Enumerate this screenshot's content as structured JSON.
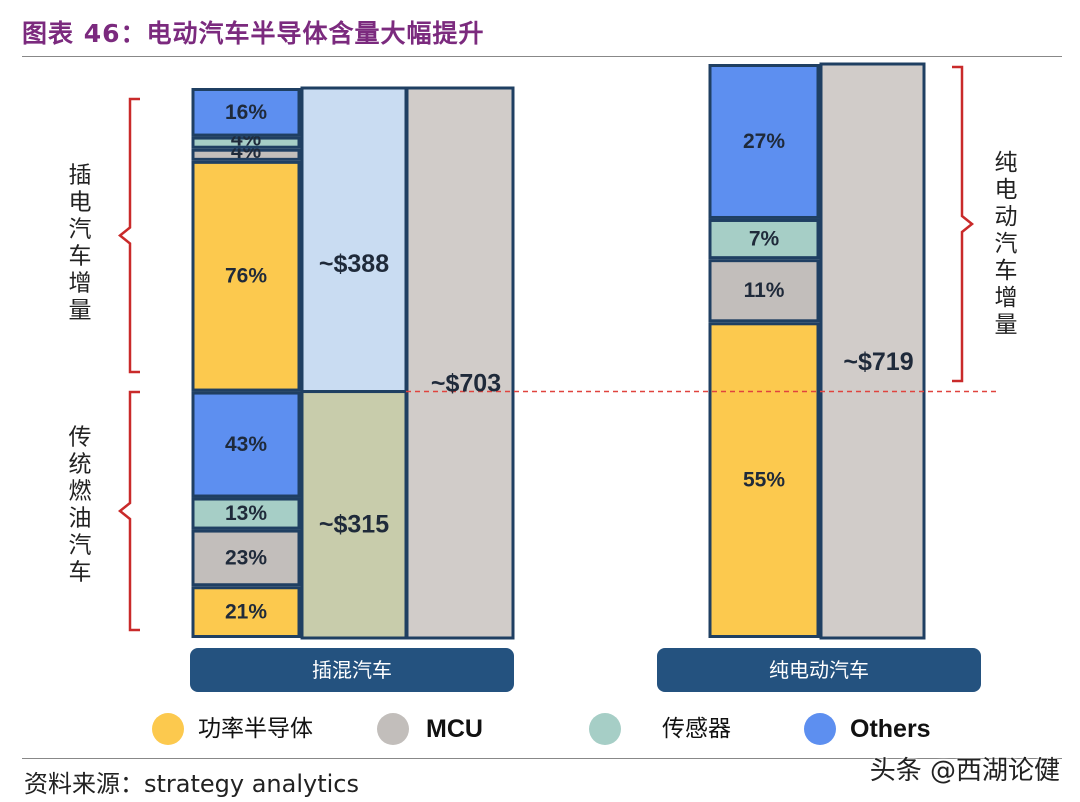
{
  "title": "图表 46：电动汽车半导体含量大幅提升",
  "source": "资料来源：strategy analytics",
  "watermark": "头条 @西湖论健",
  "colors": {
    "power": "#fcc94e",
    "mcu": "#c2bebb",
    "sensor": "#a6cec6",
    "others": "#5d8ff0",
    "total": "#d1ccc9",
    "phev_increment_total": "#c9dcf2",
    "ice_total": "#c8ccab",
    "frame": "#1f3f62",
    "bracket": "#c92a2a",
    "dashed_line": "#e0433e",
    "group_bar": "#24527f",
    "title": "#7b2a7e"
  },
  "chart_data": {
    "type": "stacked_bar",
    "title": "电动汽车半导体含量大幅提升",
    "units": "%",
    "legend": [
      {
        "key": "power",
        "label": "功率半导体",
        "icon": "circle-yellow"
      },
      {
        "key": "mcu",
        "label": "MCU",
        "icon": "circle-gray"
      },
      {
        "key": "sensor",
        "label": "传感器",
        "icon": "circle-teal"
      },
      {
        "key": "others",
        "label": "Others",
        "icon": "circle-blue"
      }
    ],
    "groups": [
      {
        "label": "插混汽车",
        "total_label": "~$703",
        "total_value": 703,
        "segments": [
          {
            "label": "传统燃油汽车",
            "total_label": "~$315",
            "total_value": 315,
            "composition": [
              {
                "category": "功率半导体",
                "key": "power",
                "value": 21,
                "label": "21%"
              },
              {
                "category": "MCU",
                "key": "mcu",
                "value": 23,
                "label": "23%"
              },
              {
                "category": "传感器",
                "key": "sensor",
                "value": 13,
                "label": "13%"
              },
              {
                "category": "Others",
                "key": "others",
                "value": 43,
                "label": "43%"
              }
            ]
          },
          {
            "label": "插电汽车增量",
            "total_label": "~$388",
            "total_value": 388,
            "composition": [
              {
                "category": "功率半导体",
                "key": "power",
                "value": 76,
                "label": "76%"
              },
              {
                "category": "MCU",
                "key": "mcu",
                "value": 4,
                "label": "4%"
              },
              {
                "category": "传感器",
                "key": "sensor",
                "value": 4,
                "label": "4%"
              },
              {
                "category": "Others",
                "key": "others",
                "value": 16,
                "label": "16%"
              }
            ]
          }
        ]
      },
      {
        "label": "纯电动汽车",
        "total_label": "~$719",
        "total_value": 719,
        "segments": [
          {
            "label": "纯电动汽车增量",
            "composition": [
              {
                "category": "功率半导体",
                "key": "power",
                "value": 55,
                "label": "55%"
              },
              {
                "category": "MCU",
                "key": "mcu",
                "value": 11,
                "label": "11%"
              },
              {
                "category": "传感器",
                "key": "sensor",
                "value": 7,
                "label": "7%"
              },
              {
                "category": "Others",
                "key": "others",
                "value": 27,
                "label": "27%"
              }
            ]
          }
        ]
      }
    ]
  }
}
